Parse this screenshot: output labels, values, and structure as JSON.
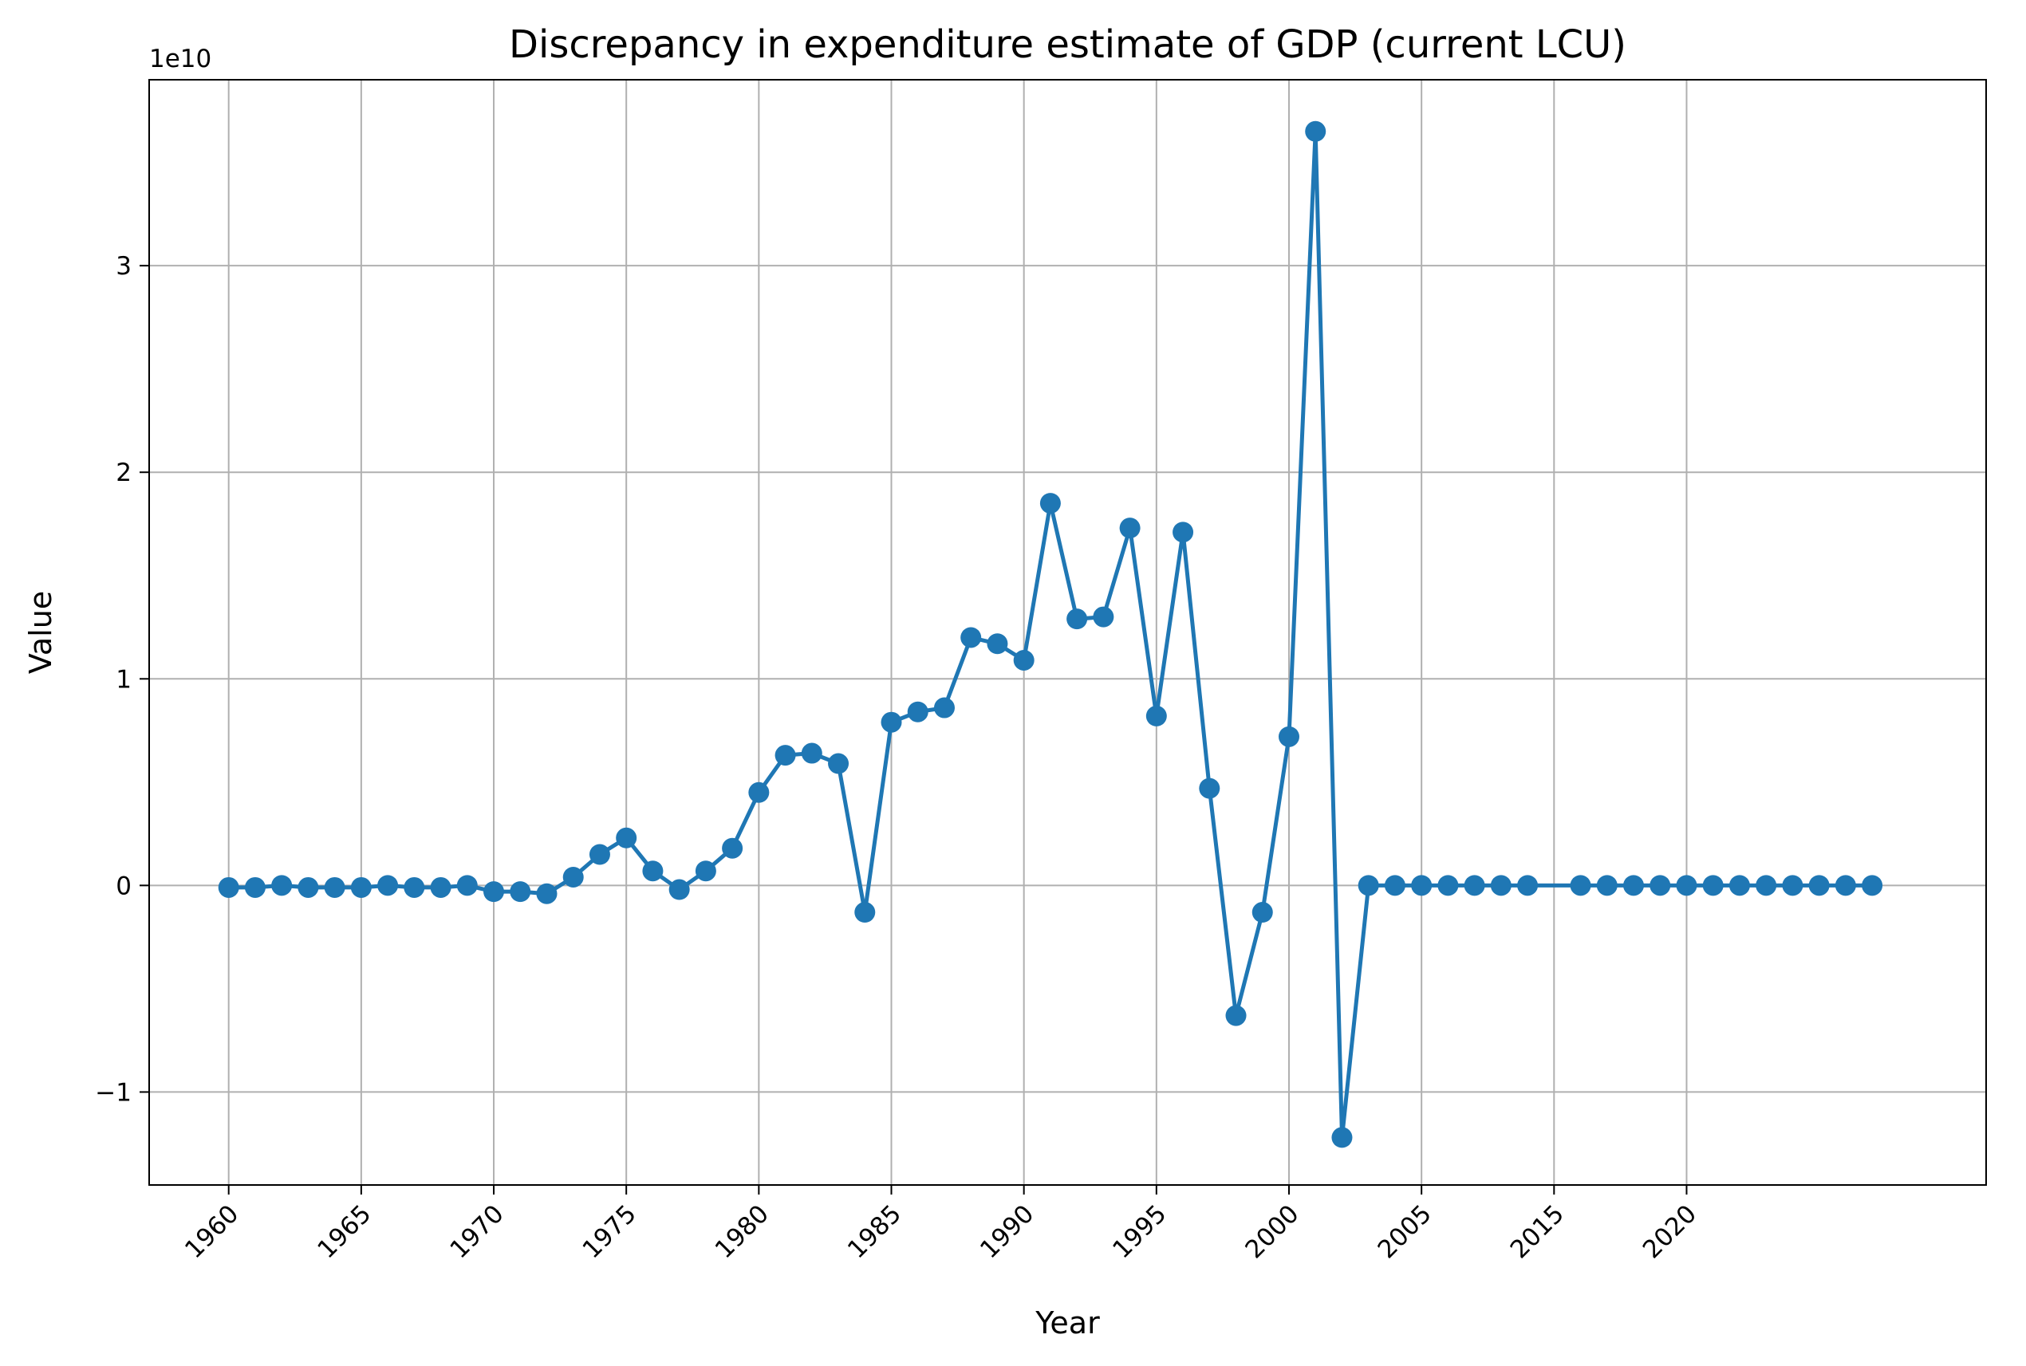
{
  "chart_data": {
    "type": "line",
    "title": "Discrepancy in expenditure estimate of GDP (current LCU)",
    "xlabel": "Year",
    "ylabel": "Value",
    "y_offset_label": "1e10",
    "line_color": "#1f77b4",
    "grid": true,
    "x_tick_labels": [
      "1960",
      "1965",
      "1970",
      "1975",
      "1980",
      "1985",
      "1990",
      "1995",
      "2000",
      "2005",
      "2015",
      "2020"
    ],
    "y_ticks": [
      -1,
      0,
      1,
      2,
      3
    ],
    "y_tick_labels": [
      "−1",
      "0",
      "1",
      "2",
      "3"
    ],
    "ylim": [
      -1.45,
      3.9
    ],
    "y_scale_note": "values in units of 1e10",
    "x": [
      1960,
      1961,
      1962,
      1963,
      1964,
      1965,
      1966,
      1967,
      1968,
      1969,
      1970,
      1971,
      1972,
      1973,
      1974,
      1975,
      1976,
      1977,
      1978,
      1979,
      1980,
      1981,
      1982,
      1983,
      1984,
      1985,
      1986,
      1987,
      1988,
      1989,
      1990,
      1991,
      1992,
      1993,
      1994,
      1995,
      1996,
      1997,
      1998,
      1999,
      2000,
      2001,
      2002,
      2003,
      2004,
      2005,
      2006,
      2007,
      2008,
      2009,
      2011,
      2012,
      2013,
      2014,
      2015,
      2016,
      2017,
      2018,
      2019,
      2020,
      2021,
      2022
    ],
    "series": [
      {
        "name": "",
        "values": [
          -0.01,
          -0.01,
          0.0,
          -0.01,
          -0.01,
          -0.01,
          0.0,
          -0.01,
          -0.01,
          0.0,
          -0.03,
          -0.03,
          -0.04,
          0.04,
          0.15,
          0.23,
          0.07,
          -0.02,
          0.07,
          0.18,
          0.45,
          0.63,
          0.64,
          0.59,
          -0.13,
          0.79,
          0.84,
          0.86,
          1.2,
          1.17,
          1.09,
          1.85,
          1.29,
          1.3,
          1.73,
          0.82,
          1.71,
          0.47,
          -0.63,
          -0.13,
          0.72,
          3.65,
          -1.22,
          0.0,
          0.0,
          0.0,
          0.0,
          0.0,
          0.0,
          0.0,
          0.0,
          0.0,
          0.0,
          0.0,
          0.0,
          0.0,
          0.0,
          0.0,
          0.0,
          0.0,
          0.0,
          0.0
        ]
      }
    ]
  }
}
